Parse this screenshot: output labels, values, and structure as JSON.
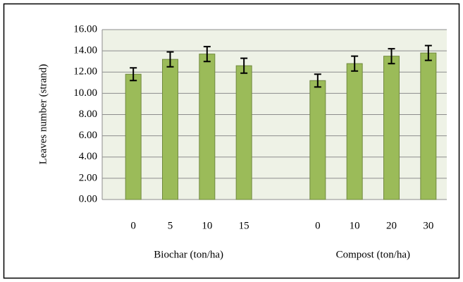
{
  "chart_data": {
    "type": "bar",
    "ylabel": "Leaves  number  (strand)",
    "categories": [
      "0",
      "5",
      "10",
      "15",
      null,
      "0",
      "10",
      "20",
      "30"
    ],
    "values": [
      11.8,
      13.2,
      13.7,
      12.6,
      null,
      11.2,
      12.8,
      13.5,
      13.8
    ],
    "errors": [
      0.6,
      0.7,
      0.7,
      0.7,
      null,
      0.6,
      0.7,
      0.7,
      0.7
    ],
    "group_labels": [
      "Biochar (ton/ha)",
      "Compost (ton/ha)"
    ],
    "color": "#9bbb59",
    "edge_color": "#71893f",
    "ylim": [
      0,
      16
    ],
    "yticks": [
      {
        "value": 0,
        "label": "0.00"
      },
      {
        "value": 2,
        "label": "2.00"
      },
      {
        "value": 4,
        "label": "4.00"
      },
      {
        "value": 6,
        "label": "6.00"
      },
      {
        "value": 8,
        "label": "8.00"
      },
      {
        "value": 10,
        "label": "10.00"
      },
      {
        "value": 12,
        "label": "12.00"
      },
      {
        "value": 14,
        "label": "14.00"
      },
      {
        "value": 16,
        "label": "16.00"
      }
    ],
    "grid": true
  }
}
